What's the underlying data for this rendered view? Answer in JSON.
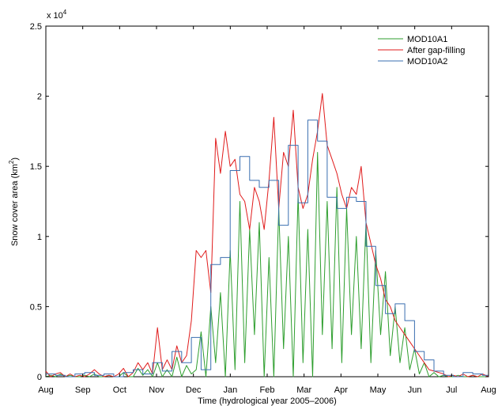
{
  "chart_data": {
    "type": "line",
    "title": "",
    "xlabel": "Time (hydrological year 2005–2006)",
    "ylabel_main": "Snow cover area (km",
    "ylabel_sup": "2",
    "ylabel_tail": ")",
    "y_multiplier_base": "x 10",
    "y_multiplier_exp": "4",
    "x_tick_labels": [
      "Aug",
      "Sep",
      "Oct",
      "Nov",
      "Dec",
      "Jan",
      "Feb",
      "Mar",
      "Apr",
      "May",
      "Jun",
      "Jul",
      "Aug"
    ],
    "y_tick_labels": [
      "0",
      "0.5",
      "1",
      "1.5",
      "2",
      "2.5"
    ],
    "y_tick_values": [
      0,
      0.5,
      1,
      1.5,
      2,
      2.5
    ],
    "xlim": [
      0,
      365
    ],
    "ylim": [
      0,
      2.5
    ],
    "grid": false,
    "legend_position": "top-right",
    "colors": {
      "MOD10A1": "#2e9e2e",
      "After gap-filling": "#e01b1b",
      "MOD10A2": "#3a6fb0"
    },
    "series": [
      {
        "name": "MOD10A1",
        "style": "line",
        "x": [
          0,
          4,
          8,
          12,
          16,
          20,
          24,
          28,
          32,
          36,
          40,
          44,
          48,
          52,
          56,
          60,
          64,
          68,
          72,
          76,
          80,
          84,
          88,
          92,
          96,
          100,
          104,
          108,
          112,
          116,
          120,
          124,
          128,
          132,
          136,
          140,
          144,
          148,
          152,
          156,
          160,
          164,
          168,
          172,
          176,
          180,
          184,
          188,
          192,
          196,
          200,
          204,
          208,
          212,
          216,
          220,
          224,
          228,
          232,
          236,
          240,
          244,
          248,
          252,
          256,
          260,
          264,
          268,
          272,
          276,
          280,
          284,
          288,
          292,
          296,
          300,
          304,
          308,
          312,
          316,
          320,
          324,
          328,
          332,
          336,
          340,
          344,
          348,
          352,
          356,
          360,
          365
        ],
        "values": [
          0.0,
          0.01,
          0.0,
          0.02,
          0.0,
          0.01,
          0.0,
          0.0,
          0.01,
          0.0,
          0.02,
          0.0,
          0.0,
          0.01,
          0.0,
          0.0,
          0.03,
          0.0,
          0.0,
          0.06,
          0.01,
          0.05,
          0.0,
          0.1,
          0.0,
          0.05,
          0.0,
          0.14,
          0.0,
          0.08,
          0.02,
          0.05,
          0.32,
          0.0,
          0.5,
          0.1,
          0.6,
          0.0,
          0.9,
          0.05,
          1.25,
          0.1,
          1.05,
          0.3,
          1.1,
          0.0,
          0.85,
          0.0,
          1.2,
          0.2,
          1.0,
          0.0,
          1.3,
          0.1,
          1.05,
          0.0,
          1.6,
          0.3,
          1.25,
          0.2,
          1.35,
          0.1,
          1.2,
          0.3,
          1.0,
          0.2,
          1.1,
          0.1,
          0.9,
          0.3,
          0.75,
          0.15,
          0.5,
          0.1,
          0.35,
          0.05,
          0.2,
          0.02,
          0.1,
          0.0,
          0.03,
          0.0,
          0.01,
          0.0,
          0.0,
          0.01,
          0.0,
          0.0,
          0.01,
          0.0,
          0.0,
          0.0
        ]
      },
      {
        "name": "After gap-filling",
        "style": "line",
        "x": [
          0,
          4,
          8,
          12,
          16,
          20,
          24,
          28,
          32,
          36,
          40,
          44,
          48,
          52,
          56,
          60,
          64,
          68,
          72,
          76,
          80,
          84,
          88,
          92,
          96,
          100,
          104,
          108,
          112,
          116,
          120,
          124,
          128,
          132,
          136,
          140,
          144,
          148,
          152,
          156,
          160,
          164,
          168,
          172,
          176,
          180,
          184,
          188,
          192,
          196,
          200,
          204,
          208,
          212,
          216,
          220,
          224,
          228,
          232,
          236,
          240,
          244,
          248,
          252,
          256,
          260,
          264,
          268,
          272,
          276,
          280,
          284,
          288,
          292,
          296,
          300,
          304,
          308,
          312,
          316,
          320,
          324,
          328,
          332,
          336,
          340,
          344,
          348,
          352,
          356,
          360,
          365
        ],
        "values": [
          0.04,
          0.0,
          0.02,
          0.03,
          0.0,
          0.02,
          0.0,
          0.01,
          0.0,
          0.02,
          0.05,
          0.02,
          0.0,
          0.01,
          0.0,
          0.02,
          0.06,
          0.0,
          0.03,
          0.1,
          0.05,
          0.1,
          0.02,
          0.35,
          0.05,
          0.12,
          0.05,
          0.22,
          0.1,
          0.15,
          0.4,
          0.9,
          0.85,
          0.9,
          0.6,
          1.7,
          1.45,
          1.75,
          1.5,
          1.55,
          1.3,
          1.25,
          1.05,
          1.35,
          1.25,
          1.05,
          1.4,
          1.85,
          1.2,
          1.6,
          1.5,
          1.9,
          1.35,
          1.2,
          1.3,
          1.55,
          1.75,
          2.02,
          1.65,
          1.55,
          1.45,
          1.3,
          1.2,
          1.35,
          1.3,
          1.5,
          1.1,
          0.95,
          0.8,
          0.7,
          0.55,
          0.5,
          0.4,
          0.35,
          0.3,
          0.25,
          0.2,
          0.15,
          0.1,
          0.05,
          0.04,
          0.03,
          0.02,
          0.0,
          0.01,
          0.0,
          0.02,
          0.0,
          0.01,
          0.0,
          0.02,
          0.0
        ]
      },
      {
        "name": "MOD10A2",
        "style": "step",
        "x": [
          0,
          8,
          16,
          24,
          32,
          40,
          48,
          56,
          64,
          72,
          80,
          88,
          96,
          104,
          112,
          120,
          128,
          136,
          144,
          152,
          160,
          168,
          176,
          184,
          192,
          200,
          208,
          216,
          224,
          232,
          240,
          248,
          256,
          264,
          272,
          280,
          288,
          296,
          304,
          312,
          320,
          328,
          336,
          344,
          352,
          360
        ],
        "values": [
          0.02,
          0.01,
          0.0,
          0.02,
          0.03,
          0.01,
          0.02,
          0.0,
          0.03,
          0.05,
          0.02,
          0.1,
          0.04,
          0.18,
          0.1,
          0.28,
          0.05,
          0.8,
          0.85,
          1.47,
          1.57,
          1.4,
          1.35,
          1.4,
          1.08,
          1.65,
          1.24,
          1.83,
          1.68,
          1.28,
          1.2,
          1.28,
          1.25,
          0.93,
          0.65,
          0.45,
          0.52,
          0.4,
          0.18,
          0.12,
          0.04,
          0.01,
          0.0,
          0.03,
          0.02,
          0.01
        ]
      }
    ]
  }
}
